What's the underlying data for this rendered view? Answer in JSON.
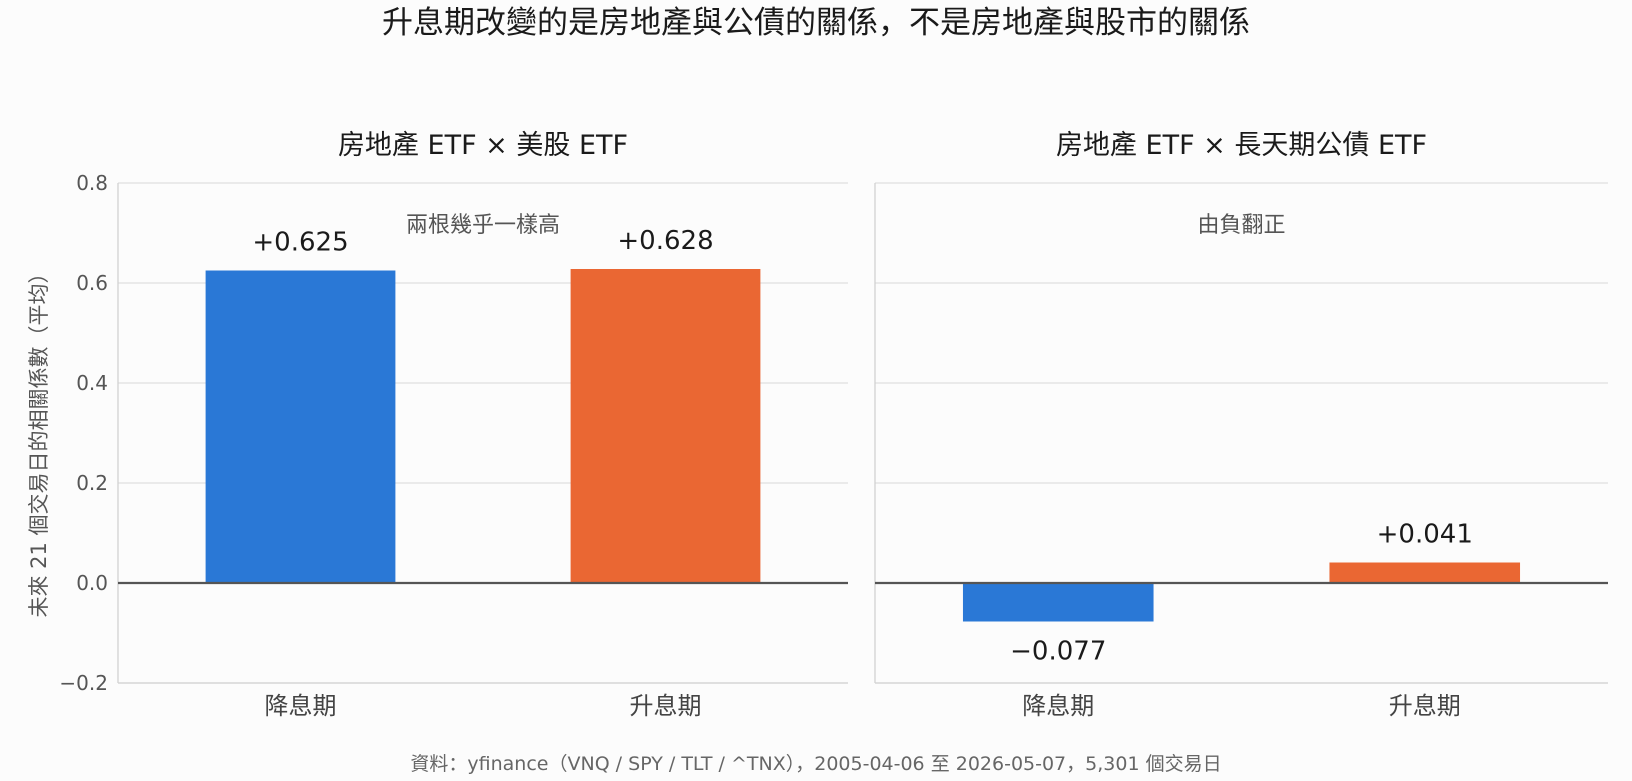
{
  "title": "升息期改變的是房地產與公債的關係，不是房地產與股市的關係",
  "source": "資料：yfinance（VNQ / SPY / TLT / ^TNX），2005-04-06 至 2026-05-07，5,301 個交易日",
  "colors": {
    "cut": "#2a78d6",
    "hike": "#ea6733"
  },
  "chart_data": {
    "type": "bar",
    "ylabel": "未來 21 個交易日的相關係數（平均）",
    "ylim": [
      -0.2,
      0.8
    ],
    "yticks": [
      -0.2,
      0.0,
      0.2,
      0.4,
      0.6,
      0.8
    ],
    "ytick_labels": [
      "−0.2",
      "0.0",
      "0.2",
      "0.4",
      "0.6",
      "0.8"
    ],
    "categories": [
      "降息期",
      "升息期"
    ],
    "grid": true,
    "panels": [
      {
        "title": "房地產 ETF × 美股 ETF",
        "values": [
          0.625,
          0.628
        ],
        "value_labels": [
          "+0.625",
          "+0.628"
        ],
        "annotation": "兩根幾乎一樣高"
      },
      {
        "title": "房地產 ETF × 長天期公債 ETF",
        "values": [
          -0.077,
          0.041
        ],
        "value_labels": [
          "−0.077",
          "+0.041"
        ],
        "annotation": "由負翻正"
      }
    ]
  }
}
